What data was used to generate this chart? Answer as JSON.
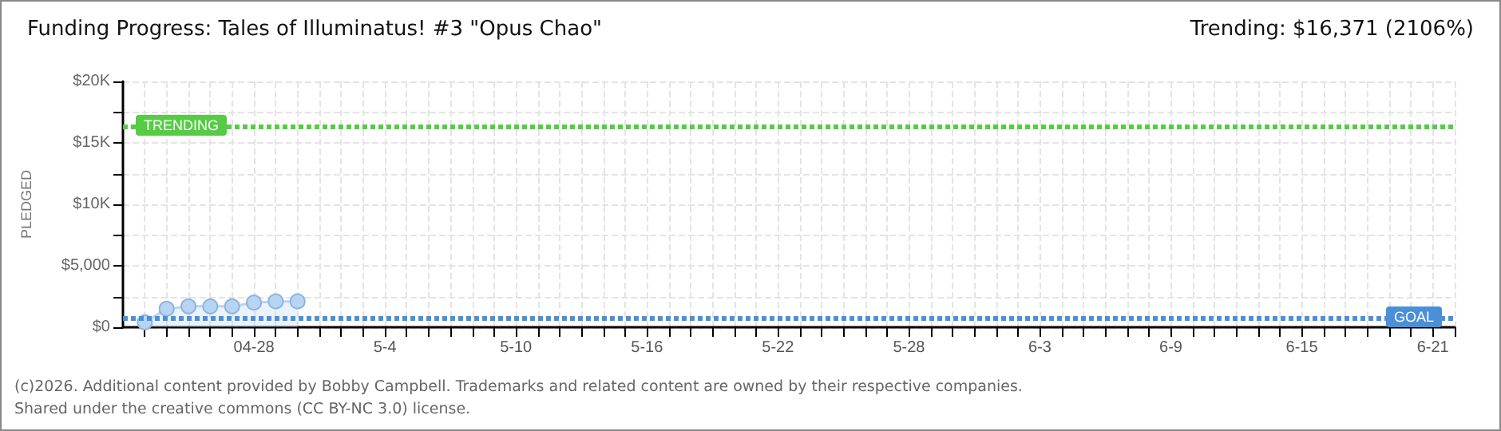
{
  "chart_data": {
    "type": "area",
    "title": "Funding Progress: Tales of Illuminatus! #3 \"Opus Chao\"",
    "subtitle": "Trending: $16,371 (2106%)",
    "ylabel": "PLEDGED",
    "x": [
      "--04-23",
      "--04-24",
      "--04-25",
      "--04-26",
      "--04-27",
      "--04-28",
      "--04-29",
      "--04-30"
    ],
    "series": [
      {
        "color": "#b8d4f4",
        "values": [
          400,
          1500,
          1700,
          1700,
          1700,
          2000,
          2100,
          2100
        ]
      }
    ],
    "marker": "circle",
    "xlim": [
      "--04-22",
      "--06-22"
    ],
    "xticks": [
      {
        "value": "--04-23",
        "label": null
      },
      {
        "value": "--04-24",
        "label": null
      },
      {
        "value": "--04-25",
        "label": null
      },
      {
        "value": "--04-26",
        "label": null
      },
      {
        "value": "--04-27",
        "label": null
      },
      {
        "value": "--04-28",
        "label": "04-28"
      },
      {
        "value": "--04-29",
        "label": null
      },
      {
        "value": "--04-30",
        "label": null
      },
      {
        "value": "--05-01",
        "label": null
      },
      {
        "value": "--05-02",
        "label": null
      },
      {
        "value": "--05-03",
        "label": null
      },
      {
        "value": "--05-04",
        "label": "5-4"
      },
      {
        "value": "--05-05",
        "label": null
      },
      {
        "value": "--05-06",
        "label": null
      },
      {
        "value": "--05-07",
        "label": null
      },
      {
        "value": "--05-08",
        "label": null
      },
      {
        "value": "--05-09",
        "label": null
      },
      {
        "value": "--05-10",
        "label": "5-10"
      },
      {
        "value": "--05-11",
        "label": null
      },
      {
        "value": "--05-12",
        "label": null
      },
      {
        "value": "--05-13",
        "label": null
      },
      {
        "value": "--05-14",
        "label": null
      },
      {
        "value": "--05-15",
        "label": null
      },
      {
        "value": "--05-16",
        "label": "5-16"
      },
      {
        "value": "--05-17",
        "label": null
      },
      {
        "value": "--05-18",
        "label": null
      },
      {
        "value": "--05-19",
        "label": null
      },
      {
        "value": "--05-20",
        "label": null
      },
      {
        "value": "--05-21",
        "label": null
      },
      {
        "value": "--05-22",
        "label": "5-22"
      },
      {
        "value": "--05-23",
        "label": null
      },
      {
        "value": "--05-24",
        "label": null
      },
      {
        "value": "--05-25",
        "label": null
      },
      {
        "value": "--05-26",
        "label": null
      },
      {
        "value": "--05-27",
        "label": null
      },
      {
        "value": "--05-28",
        "label": "5-28"
      },
      {
        "value": "--05-29",
        "label": null
      },
      {
        "value": "--05-30",
        "label": null
      },
      {
        "value": "--05-31",
        "label": null
      },
      {
        "value": "--06-01",
        "label": null
      },
      {
        "value": "--06-02",
        "label": null
      },
      {
        "value": "--06-03",
        "label": "6-3"
      },
      {
        "value": "--06-04",
        "label": null
      },
      {
        "value": "--06-05",
        "label": null
      },
      {
        "value": "--06-06",
        "label": null
      },
      {
        "value": "--06-07",
        "label": null
      },
      {
        "value": "--06-08",
        "label": null
      },
      {
        "value": "--06-09",
        "label": "6-9"
      },
      {
        "value": "--06-10",
        "label": null
      },
      {
        "value": "--06-11",
        "label": null
      },
      {
        "value": "--06-12",
        "label": null
      },
      {
        "value": "--06-13",
        "label": null
      },
      {
        "value": "--06-14",
        "label": null
      },
      {
        "value": "--06-15",
        "label": "6-15"
      },
      {
        "value": "--06-16",
        "label": null
      },
      {
        "value": "--06-17",
        "label": null
      },
      {
        "value": "--06-18",
        "label": null
      },
      {
        "value": "--06-19",
        "label": null
      },
      {
        "value": "--06-20",
        "label": null
      },
      {
        "value": "--06-21",
        "label": "6-21"
      },
      {
        "value": "--06-22",
        "label": null
      }
    ],
    "ylim": [
      0,
      20000
    ],
    "yticks": [
      {
        "value": 0,
        "label": "$0"
      },
      {
        "value": 2500,
        "label": null
      },
      {
        "value": 5000,
        "label": "$5,000"
      },
      {
        "value": 7500,
        "label": null
      },
      {
        "value": 10000,
        "label": "$10K"
      },
      {
        "value": 12500,
        "label": null
      },
      {
        "value": 15000,
        "label": "$15K"
      },
      {
        "value": 17500,
        "label": null
      },
      {
        "value": 20000,
        "label": "$20K"
      }
    ],
    "grid": true,
    "ref_lines": [
      {
        "axis": "y",
        "value": 16371,
        "label": "TRENDING",
        "color": "#55cc44",
        "line_style": "dotted"
      },
      {
        "axis": "y",
        "value": 777,
        "label": "GOAL",
        "color": "#4a90d9",
        "line_style": "dotted"
      }
    ],
    "annotations": [
      "(c)2026. Additional content provided by Bobby Campbell. Trademarks and related content are owned by their respective companies.",
      "Shared under the creative commons (CC BY-NC 3.0) license."
    ]
  }
}
